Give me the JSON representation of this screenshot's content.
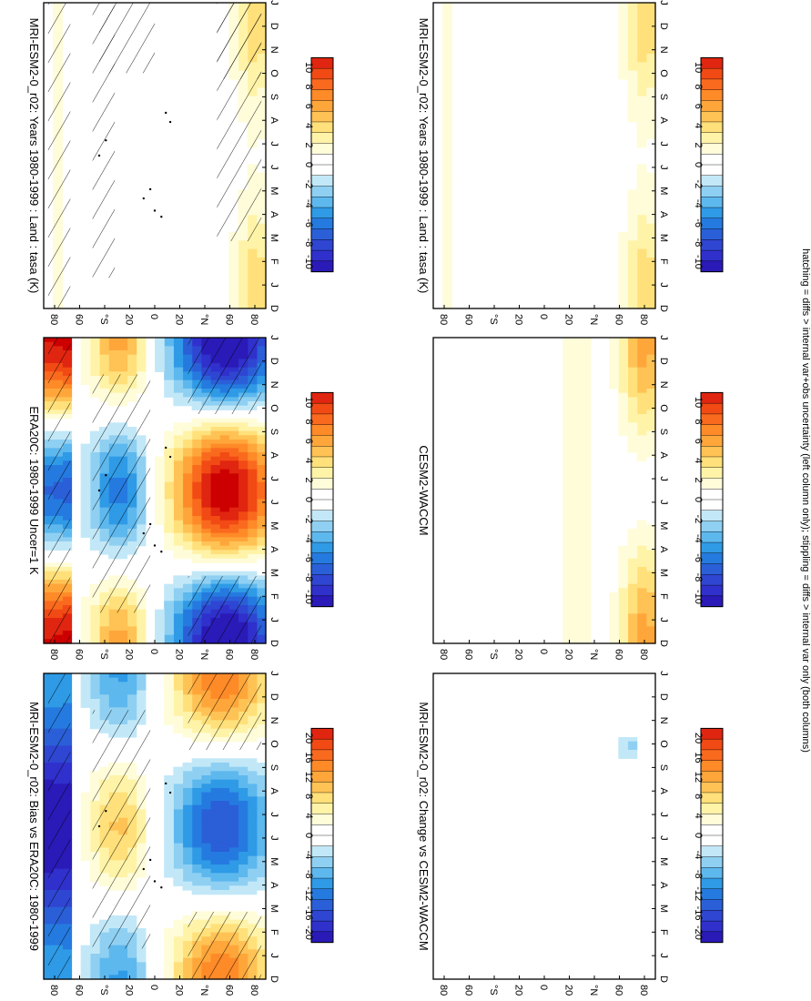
{
  "footnote": "hatching = diffs > internal var+obs uncertainty (left column only); stippling = diffs > internal var only (both columns)",
  "colors": {
    "warm": [
      "#ffffff",
      "#fffcd9",
      "#fff3a8",
      "#ffe07a",
      "#ffc255",
      "#ffa63a",
      "#ff8a28",
      "#fa6a1e",
      "#f24a14",
      "#e02510",
      "#cc0000"
    ],
    "cool": [
      "#ffffff",
      "#c2e8f8",
      "#8fd0f2",
      "#5db8ee",
      "#2f9ae6",
      "#257ae0",
      "#2a5fd8",
      "#2f46d2",
      "#3030cc",
      "#2a1ab8"
    ]
  },
  "chart_data": [
    {
      "type": "heatmap",
      "title": "MRI-ESM2-0_r02: Years 1980-1999 : Land : tasa (K)",
      "months": [
        "D",
        "J",
        "F",
        "M",
        "A",
        "M",
        "J",
        "J",
        "A",
        "S",
        "O",
        "N",
        "D",
        "J"
      ],
      "lat_ticks": [
        "80",
        "60",
        "°N",
        "20",
        "0",
        "20",
        "°S",
        "60",
        "80"
      ],
      "colorbar_ticks": [
        "10",
        "8",
        "6",
        "4",
        "2",
        "0",
        "-2",
        "-4",
        "-6",
        "-8",
        "-10"
      ],
      "field": "abs",
      "hatched": true,
      "stippled": true
    },
    {
      "type": "heatmap",
      "title": "MRI-ESM2-0_r02: Years 1980-1999 : Land : tasa (K)",
      "months": [
        "D",
        "J",
        "F",
        "M",
        "A",
        "M",
        "J",
        "J",
        "A",
        "S",
        "O",
        "N",
        "D",
        "J"
      ],
      "lat_ticks": [
        "80",
        "60",
        "°N",
        "20",
        "0",
        "20",
        "°S",
        "60",
        "80"
      ],
      "colorbar_ticks": [
        "10",
        "8",
        "6",
        "4",
        "2",
        "0",
        "-2",
        "-4",
        "-6",
        "-8",
        "-10"
      ],
      "field": "abs",
      "hatched": false,
      "stippled": false
    },
    {
      "type": "heatmap",
      "title": "ERA20C: 1980-1999 Uncer=1 K",
      "months": [
        "D",
        "J",
        "F",
        "M",
        "A",
        "M",
        "J",
        "J",
        "A",
        "S",
        "O",
        "N",
        "D",
        "J"
      ],
      "lat_ticks": [
        "80",
        "60",
        "°N",
        "20",
        "0",
        "20",
        "°S",
        "60",
        "80"
      ],
      "colorbar_ticks": [
        "10",
        "8",
        "6",
        "4",
        "2",
        "0",
        "-2",
        "-4",
        "-6",
        "-8",
        "-10"
      ],
      "field": "era",
      "hatched": true,
      "stippled": true
    },
    {
      "type": "heatmap",
      "title": "CESM2-WACCM",
      "months": [
        "D",
        "J",
        "F",
        "M",
        "A",
        "M",
        "J",
        "J",
        "A",
        "S",
        "O",
        "N",
        "D",
        "J"
      ],
      "lat_ticks": [
        "80",
        "60",
        "°N",
        "20",
        "0",
        "20",
        "°S",
        "60",
        "80"
      ],
      "colorbar_ticks": [
        "10",
        "8",
        "6",
        "4",
        "2",
        "0",
        "-2",
        "-4",
        "-6",
        "-8",
        "-10"
      ],
      "field": "cesm",
      "hatched": false,
      "stippled": false
    },
    {
      "type": "heatmap",
      "title": "MRI-ESM2-0_r02: Bias vs ERA20C: 1980-1999",
      "months": [
        "D",
        "J",
        "F",
        "M",
        "A",
        "M",
        "J",
        "J",
        "A",
        "S",
        "O",
        "N",
        "D",
        "J"
      ],
      "lat_ticks": [
        "80",
        "60",
        "°N",
        "20",
        "0",
        "20",
        "°S",
        "60",
        "80"
      ],
      "colorbar_ticks": [
        "20",
        "16",
        "12",
        "8",
        "4",
        "0",
        "-4",
        "-8",
        "-12",
        "-16",
        "-20"
      ],
      "field": "bias",
      "hatched": true,
      "stippled": true
    },
    {
      "type": "heatmap",
      "title": "MRI-ESM2-0_r02: Change vs CESM2-WACCM",
      "months": [
        "D",
        "J",
        "F",
        "M",
        "A",
        "M",
        "J",
        "J",
        "A",
        "S",
        "O",
        "N",
        "D",
        "J"
      ],
      "lat_ticks": [
        "80",
        "60",
        "°N",
        "20",
        "0",
        "20",
        "°S",
        "60",
        "80"
      ],
      "colorbar_ticks": [
        "20",
        "16",
        "12",
        "8",
        "4",
        "0",
        "-4",
        "-8",
        "-12",
        "-16",
        "-20"
      ],
      "field": "change",
      "hatched": false,
      "stippled": false
    }
  ]
}
